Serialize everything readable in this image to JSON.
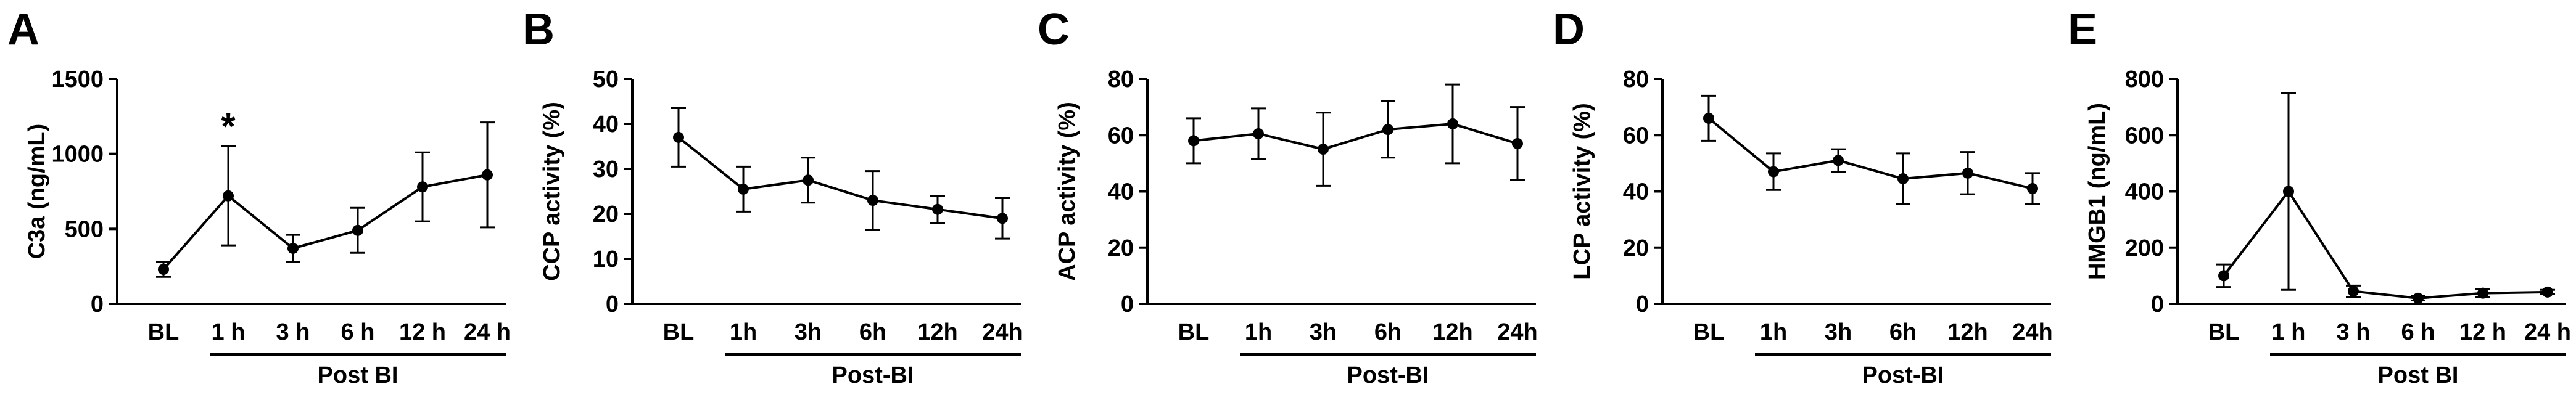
{
  "chart_data": [
    {
      "type": "line",
      "panel": "A",
      "y_label": "C3a (ng/mL)",
      "categories": [
        "BL",
        "1 h",
        "3 h",
        "6 h",
        "12 h",
        "24 h"
      ],
      "values": [
        230,
        720,
        370,
        490,
        780,
        860
      ],
      "errors": [
        50,
        330,
        90,
        150,
        230,
        350
      ],
      "ylim": [
        0,
        1500
      ],
      "yticks": [
        0,
        500,
        1000,
        1500
      ],
      "group_label": "Post BI",
      "annotation": "*",
      "color": "#000000"
    },
    {
      "type": "line",
      "panel": "B",
      "y_label": "CCP activity (%)",
      "categories": [
        "BL",
        "1h",
        "3h",
        "6h",
        "12h",
        "24h"
      ],
      "values": [
        37,
        25.5,
        27.5,
        23,
        21,
        19
      ],
      "errors": [
        6.5,
        5,
        5,
        6.5,
        3,
        4.5
      ],
      "ylim": [
        0,
        50
      ],
      "yticks": [
        0,
        10,
        20,
        30,
        40,
        50
      ],
      "group_label": "Post-BI",
      "color": "#000000"
    },
    {
      "type": "line",
      "panel": "C",
      "y_label": "ACP activity (%)",
      "categories": [
        "BL",
        "1h",
        "3h",
        "6h",
        "12h",
        "24h"
      ],
      "values": [
        58,
        60.5,
        55,
        62,
        64,
        57
      ],
      "errors": [
        8,
        9,
        13,
        10,
        14,
        13
      ],
      "ylim": [
        0,
        80
      ],
      "yticks": [
        0,
        20,
        40,
        60,
        80
      ],
      "group_label": "Post-BI",
      "color": "#000000"
    },
    {
      "type": "line",
      "panel": "D",
      "y_label": "LCP activity (%)",
      "categories": [
        "BL",
        "1h",
        "3h",
        "6h",
        "12h",
        "24h"
      ],
      "values": [
        66,
        47,
        51,
        44.5,
        46.5,
        41
      ],
      "errors": [
        8,
        6.5,
        4,
        9,
        7.5,
        5.5
      ],
      "ylim": [
        0,
        80
      ],
      "yticks": [
        0,
        20,
        40,
        60,
        80
      ],
      "group_label": "Post-BI",
      "color": "#000000"
    },
    {
      "type": "line",
      "panel": "E",
      "y_label": "HMGB1 (ng/mL)",
      "categories": [
        "BL",
        "1 h",
        "3 h",
        "6 h",
        "12 h",
        "24 h"
      ],
      "values": [
        100,
        400,
        45,
        20,
        38,
        42
      ],
      "errors": [
        40,
        350,
        20,
        8,
        15,
        8
      ],
      "ylim": [
        0,
        800
      ],
      "yticks": [
        0,
        200,
        400,
        600,
        800
      ],
      "group_label": "Post BI",
      "color": "#000000"
    }
  ]
}
